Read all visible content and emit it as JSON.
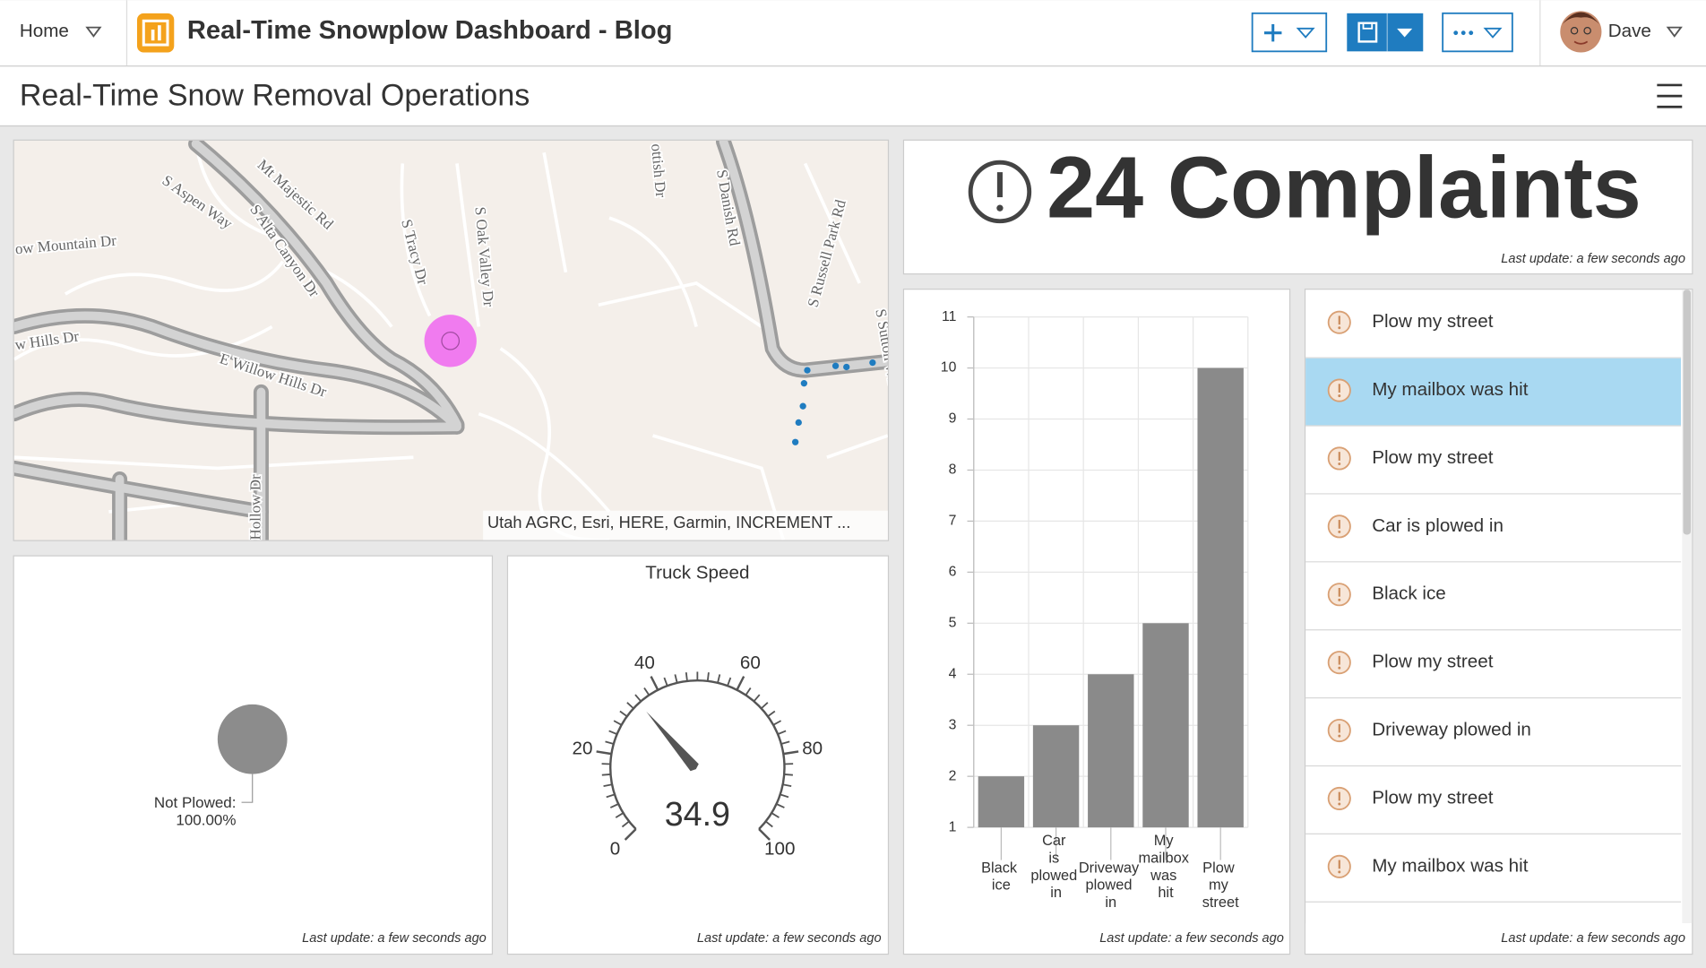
{
  "header": {
    "home": "Home",
    "title": "Real-Time Snowplow Dashboard - Blog",
    "user": "Dave"
  },
  "dashboard_title": "Real-Time Snow Removal Operations",
  "map": {
    "street_labels": [
      "S Aspen Way",
      "Mt Majestic Rd",
      "S Alta Canyon Dr",
      "ow Mountain Dr",
      "S Tracy Dr",
      "S Oak Valley Dr",
      "ottish Dr",
      "S Danish Rd",
      "S Russell Park Rd",
      "S Sutton Wa",
      "w Hills Dr",
      "E Willow Hills Dr",
      "Hollow Dr"
    ],
    "attribution": "Utah AGRC, Esri, HERE, Garmin, INCREMENT ..."
  },
  "indicator": {
    "value": 24,
    "label": "Complaints",
    "footer": "Last update: a few seconds ago"
  },
  "pie_chart": {
    "type": "pie",
    "categories": [
      "Not Plowed:"
    ],
    "values": [
      100
    ],
    "value_labels": [
      "100.00%"
    ],
    "colors": [
      "#8c8c8c"
    ],
    "footer": "Last update: a few seconds ago"
  },
  "gauge": {
    "type": "gauge",
    "title": "Truck Speed",
    "value": 34.9,
    "range": [
      0,
      100
    ],
    "ticks": [
      0,
      20,
      40,
      60,
      80,
      100
    ],
    "footer": "Last update: a few seconds ago"
  },
  "bar_chart": {
    "type": "bar",
    "categories": [
      "Black ice",
      "Car is plowed in",
      "Driveway plowed in",
      "My mailbox was hit",
      "Plow my street"
    ],
    "values": [
      2,
      3,
      4,
      5,
      10
    ],
    "color": "#8a8a8a",
    "ylim": [
      1,
      11
    ],
    "yticks": [
      1,
      2,
      3,
      4,
      5,
      6,
      7,
      8,
      9,
      10,
      11
    ],
    "grid": true,
    "footer": "Last update: a few seconds ago"
  },
  "list": {
    "items": [
      "Plow my street",
      "My mailbox was hit",
      "Plow my street",
      "Car is plowed in",
      "Black ice",
      "Plow my street",
      "Driveway plowed in",
      "Plow my street",
      "My mailbox was hit"
    ],
    "selected": 1,
    "footer": "Last update: a few seconds ago"
  }
}
